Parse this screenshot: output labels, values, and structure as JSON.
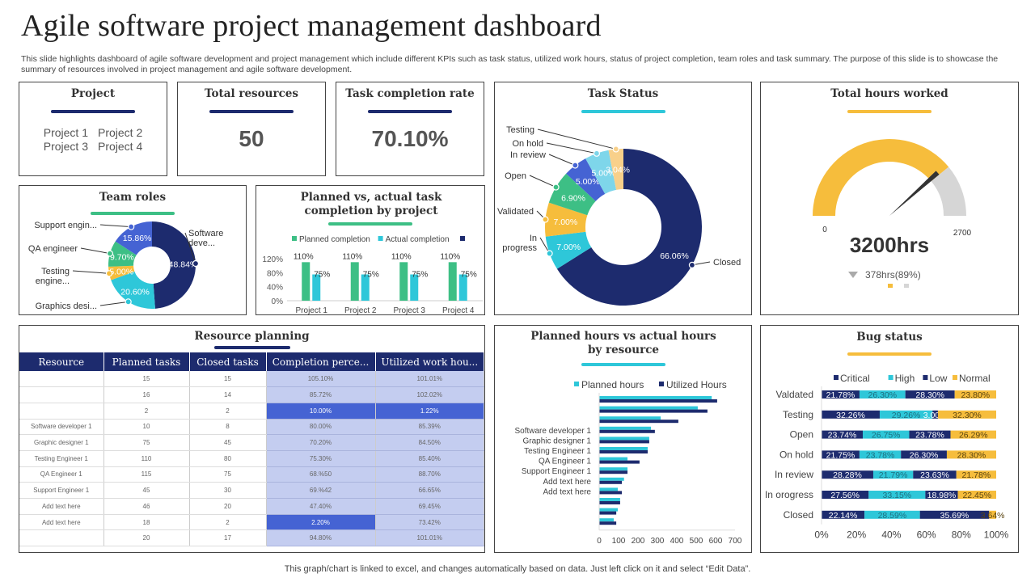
{
  "header": {
    "title": "Agile software project management dashboard",
    "subtitle": "This slide highlights dashboard of agile software development and project management which include different KPIs such as task status, utilized work hours, status of project completion, team roles and task summary. The purpose of this slide is to showcase the summary of resources involved in project management and agile software development."
  },
  "footer": "This graph/chart is linked to excel, and changes automatically based on data. Just left click on it and select “Edit Data”.",
  "colors": {
    "navy": "#1d2b6e",
    "teal": "#2ec7d9",
    "green": "#3dbf85",
    "yellow": "#f6bd3c",
    "blue": "#4563d3",
    "lightblue": "#7ed6ea",
    "peach": "#f8d08a",
    "gray": "#d6d6d6"
  },
  "project_card": {
    "title": "Project",
    "items": [
      "Project 1",
      "Project 2",
      "Project 3",
      "Project 4"
    ]
  },
  "resources_card": {
    "title": "Total resources",
    "value": "50"
  },
  "completion_card": {
    "title": "Task completion rate",
    "value": "70.10%"
  },
  "chart_data": [
    {
      "id": "task_status",
      "type": "pie",
      "title": "Task Status",
      "slices": [
        {
          "label": "Closed",
          "value": 66.06,
          "display": "66.06%",
          "color": "#1d2b6e"
        },
        {
          "label": "In progress",
          "value": 7.0,
          "display": "7.00%",
          "color": "#2ec7d9"
        },
        {
          "label": "Validated",
          "value": 7.0,
          "display": "7.00%",
          "color": "#f6bd3c"
        },
        {
          "label": "Open",
          "value": 6.9,
          "display": "6.90%",
          "color": "#3dbf85"
        },
        {
          "label": "In review",
          "value": 5.0,
          "display": "5.00%",
          "color": "#4563d3"
        },
        {
          "label": "On hold",
          "value": 5.0,
          "display": "5.00%",
          "color": "#7ed6ea"
        },
        {
          "label": "Testing",
          "value": 3.04,
          "display": "3.04%",
          "color": "#f8d08a"
        }
      ]
    },
    {
      "id": "team_roles",
      "type": "pie",
      "title": "Team roles",
      "slices": [
        {
          "label": "Software deve...",
          "value": 48.84,
          "display": "48.84%",
          "color": "#1d2b6e"
        },
        {
          "label": "Graphics desi...",
          "value": 20.6,
          "display": "20.60%",
          "color": "#2ec7d9"
        },
        {
          "label": "Testing engine...",
          "value": 5.0,
          "display": "5.00%",
          "color": "#f6bd3c"
        },
        {
          "label": "QA engineer",
          "value": 9.7,
          "display": "9.70%",
          "color": "#3dbf85"
        },
        {
          "label": "Support engin...",
          "value": 15.86,
          "display": "15.86%",
          "color": "#4563d3"
        }
      ]
    },
    {
      "id": "planned_vs_actual",
      "type": "bar",
      "title": "Planned vs, actual task completion by project",
      "categories": [
        "Project 1",
        "Project 2",
        "Project 3",
        "Project 4"
      ],
      "series": [
        {
          "name": "Planned completion",
          "values": [
            110,
            110,
            110,
            110
          ],
          "color": "#3dbf85"
        },
        {
          "name": "Actual completion",
          "values": [
            75,
            75,
            75,
            75
          ],
          "color": "#2ec7d9"
        },
        {
          "name": "",
          "values": [],
          "color": "#1d2b6e"
        }
      ],
      "yticks": [
        "0%",
        "40%",
        "80%",
        "120%"
      ],
      "ylim": [
        0,
        120
      ]
    },
    {
      "id": "hours_gauge",
      "type": "gauge",
      "title": "Total hours worked",
      "min_label": "0",
      "max_label": "2700",
      "fill_fraction": 0.78,
      "value_label": "3200hrs",
      "delta_label": "378hrs(89%)"
    },
    {
      "id": "planned_hours",
      "type": "bar",
      "orientation": "horizontal",
      "title": "Planned hours vs actual hours by resource",
      "categories": [
        "",
        "",
        "",
        "Software developer 1",
        "Graphic designer 1",
        "Testing Engineer 1",
        "QA Engineer 1",
        "Support Engineer 1",
        "Add text here",
        "Add text here",
        "",
        "",
        ""
      ],
      "series": [
        {
          "name": "Planned hours",
          "values": [
            580,
            508,
            317,
            267,
            258,
            250,
            146,
            146,
            128,
            96,
            108,
            96,
            75
          ],
          "color": "#2ec7d9"
        },
        {
          "name": "Utilized Hours",
          "values": [
            608,
            558,
            408,
            287,
            258,
            250,
            208,
            146,
            117,
            117,
            108,
            88,
            88
          ],
          "color": "#1d2b6e"
        }
      ],
      "xticks": [
        "0",
        "100",
        "200",
        "300",
        "400",
        "500",
        "600",
        "700"
      ],
      "xlim": [
        0,
        700
      ]
    },
    {
      "id": "bug_status",
      "type": "bar",
      "orientation": "horizontal",
      "stacked": "percent",
      "title": "Bug status",
      "categories": [
        "Valdated",
        "Testing",
        "Open",
        "On hold",
        "In review",
        "In orogress",
        "Closed"
      ],
      "series": [
        {
          "name": "Critical",
          "values": [
            21.78,
            32.26,
            23.74,
            21.75,
            28.28,
            27.56,
            22.14
          ],
          "color": "#1d2b6e"
        },
        {
          "name": "High",
          "values": [
            26.3,
            29.26,
            26.75,
            23.78,
            21.79,
            33.15,
            28.59
          ],
          "color": "#2ec7d9"
        },
        {
          "name": "Low",
          "values": [
            28.3,
            3.0,
            23.78,
            26.3,
            23.63,
            18.98,
            35.69
          ],
          "color": "#1d2b6e"
        },
        {
          "name": "Normal",
          "values": [
            23.8,
            32.3,
            26.29,
            28.3,
            21.78,
            22.45,
            3.64
          ],
          "color": "#f6bd3c"
        }
      ],
      "xticks": [
        "0%",
        "20%",
        "40%",
        "60%",
        "80%",
        "100%"
      ],
      "xlim": [
        0,
        100
      ]
    }
  ],
  "resource_planning": {
    "title": "Resource planning",
    "columns": [
      "Resource",
      "Planned tasks",
      "Closed tasks",
      "Completion perce...",
      "Utilized work hou..."
    ],
    "rows": [
      {
        "resource": "",
        "planned": "15",
        "closed": "15",
        "completion": "105.10%",
        "utilized": "101.01%",
        "highlight": []
      },
      {
        "resource": "",
        "planned": "16",
        "closed": "14",
        "completion": "85.72%",
        "utilized": "102.02%",
        "highlight": []
      },
      {
        "resource": "",
        "planned": "2",
        "closed": "2",
        "completion": "10.00%",
        "utilized": "1.22%",
        "highlight": [
          "completion",
          "utilized"
        ]
      },
      {
        "resource": "Software developer 1",
        "planned": "10",
        "closed": "8",
        "completion": "80.00%",
        "utilized": "85.39%",
        "highlight": []
      },
      {
        "resource": "Graphic designer 1",
        "planned": "75",
        "closed": "45",
        "completion": "70.20%",
        "utilized": "84.50%",
        "highlight": []
      },
      {
        "resource": "Testing Engineer 1",
        "planned": "110",
        "closed": "80",
        "completion": "75.30%",
        "utilized": "85.40%",
        "highlight": []
      },
      {
        "resource": "QA Engineer 1",
        "planned": "115",
        "closed": "75",
        "completion": "68.%50",
        "utilized": "88.70%",
        "highlight": []
      },
      {
        "resource": "Support Engineer 1",
        "planned": "45",
        "closed": "30",
        "completion": "69.%42",
        "utilized": "66.65%",
        "highlight": []
      },
      {
        "resource": "Add text here",
        "planned": "46",
        "closed": "20",
        "completion": "47.40%",
        "utilized": "69.45%",
        "highlight": []
      },
      {
        "resource": "Add text here",
        "planned": "18",
        "closed": "2",
        "completion": "2.20%",
        "utilized": "73.42%",
        "highlight": [
          "completion"
        ]
      },
      {
        "resource": "",
        "planned": "20",
        "closed": "17",
        "completion": "94.80%",
        "utilized": "101.01%",
        "highlight": []
      }
    ]
  }
}
